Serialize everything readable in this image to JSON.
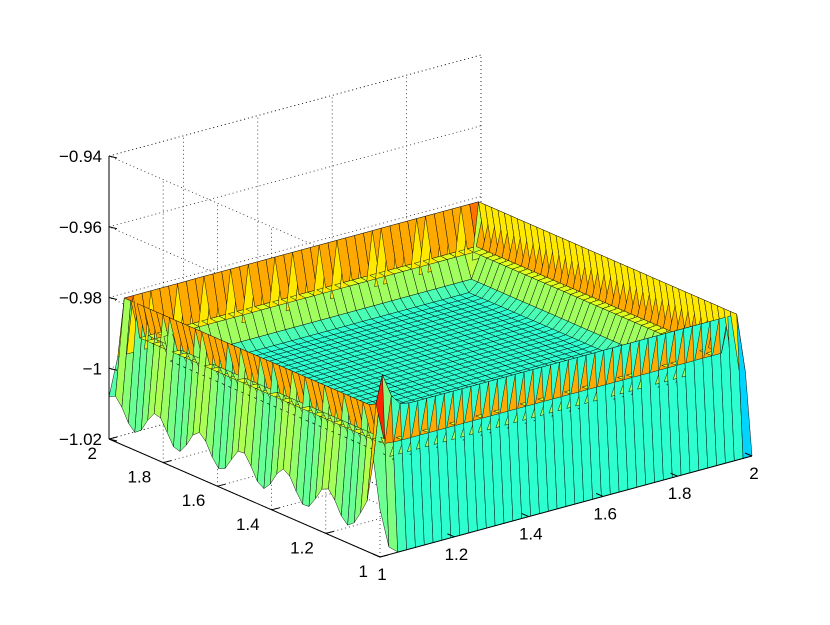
{
  "chart_data": {
    "type": "surface",
    "title": "",
    "xlabel": "",
    "ylabel": "",
    "zlabel": "",
    "x_range": [
      1,
      2
    ],
    "y_range": [
      1,
      2
    ],
    "z_range": [
      -1.02,
      -0.94
    ],
    "x_ticks": [
      1,
      1.2,
      1.4,
      1.6,
      1.8,
      2
    ],
    "y_ticks": [
      1,
      1.2,
      1.4,
      1.6,
      1.8,
      2
    ],
    "z_ticks": [
      -1.02,
      -1,
      -0.98,
      -0.96,
      -0.94
    ],
    "x_tick_labels": [
      "1",
      "1.2",
      "1.4",
      "1.6",
      "1.8",
      "2"
    ],
    "y_tick_labels": [
      "1",
      "1.2",
      "1.4",
      "1.6",
      "1.8",
      "2"
    ],
    "z_tick_labels": [
      "−1.02",
      "−1",
      "−0.98",
      "−0.96",
      "−0.94"
    ],
    "grid": true,
    "box": "open 3-D axes with dotted grid lines",
    "colormap": "jet",
    "surface": {
      "interior_value": -1.0,
      "inner_ridge_value": -0.99,
      "inner_ridge_offset": 0.06,
      "outer_ridge_value": -0.981,
      "outer_ridge_offset": 0.02,
      "front_edge_value": -1.021,
      "left_edge_value": -1.011,
      "corner_spike": {
        "x": 1.0,
        "y": 1.02,
        "value": -0.985
      },
      "grid_points": 43
    }
  }
}
